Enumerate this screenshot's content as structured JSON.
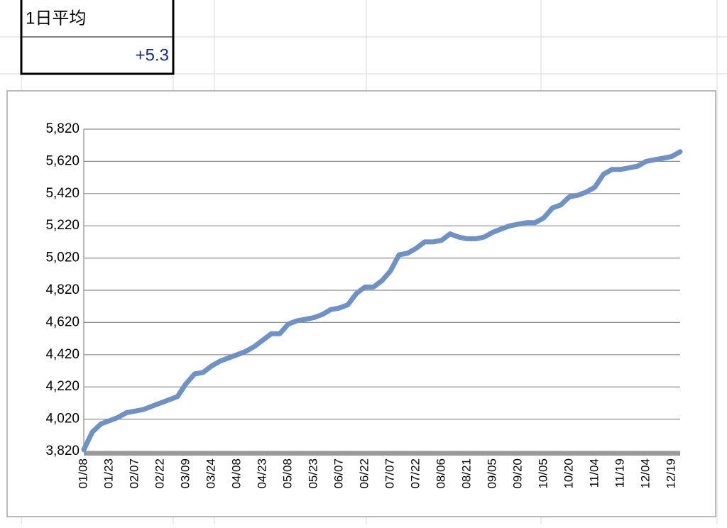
{
  "cells": {
    "label": "1日平均",
    "value": "+5.3"
  },
  "chart_data": {
    "type": "line",
    "categories": [
      "01/08",
      null,
      null,
      "01/23",
      null,
      null,
      "02/07",
      null,
      null,
      "02/22",
      null,
      null,
      "03/09",
      null,
      null,
      "03/24",
      null,
      null,
      "04/08",
      null,
      null,
      "04/23",
      null,
      null,
      "05/08",
      null,
      null,
      "05/23",
      null,
      null,
      "06/07",
      null,
      null,
      "06/22",
      null,
      null,
      "07/07",
      null,
      null,
      "07/22",
      null,
      null,
      "08/06",
      null,
      null,
      "08/21",
      null,
      null,
      "09/05",
      null,
      null,
      "09/20",
      null,
      null,
      "10/05",
      null,
      null,
      "10/20",
      null,
      null,
      "11/04",
      null,
      null,
      "11/19",
      null,
      null,
      "12/04",
      null,
      null,
      "12/19",
      null
    ],
    "values": [
      3830,
      3940,
      3990,
      4010,
      4030,
      4060,
      4070,
      4080,
      4100,
      4120,
      4140,
      4160,
      4240,
      4300,
      4310,
      4350,
      4380,
      4400,
      4420,
      4440,
      4470,
      4510,
      4550,
      4550,
      4610,
      4630,
      4640,
      4650,
      4670,
      4700,
      4710,
      4730,
      4800,
      4840,
      4840,
      4880,
      4940,
      5040,
      5050,
      5080,
      5120,
      5120,
      5130,
      5170,
      5150,
      5140,
      5140,
      5150,
      5180,
      5200,
      5220,
      5230,
      5240,
      5240,
      5270,
      5330,
      5350,
      5400,
      5410,
      5430,
      5460,
      5540,
      5570,
      5570,
      5580,
      5590,
      5620,
      5630,
      5640,
      5650,
      5680
    ],
    "color": "#6f92c6",
    "ylim": [
      3820,
      5820
    ],
    "yticks": [
      {
        "value": 3820,
        "label": "3,820"
      },
      {
        "value": 4020,
        "label": "4,020"
      },
      {
        "value": 4220,
        "label": "4,220"
      },
      {
        "value": 4420,
        "label": "4,420"
      },
      {
        "value": 4620,
        "label": "4,620"
      },
      {
        "value": 4820,
        "label": "4,820"
      },
      {
        "value": 5020,
        "label": "5,020"
      },
      {
        "value": 5220,
        "label": "5,220"
      },
      {
        "value": 5420,
        "label": "5,420"
      },
      {
        "value": 5620,
        "label": "5,620"
      },
      {
        "value": 5820,
        "label": "5,820"
      }
    ],
    "grid": true
  }
}
